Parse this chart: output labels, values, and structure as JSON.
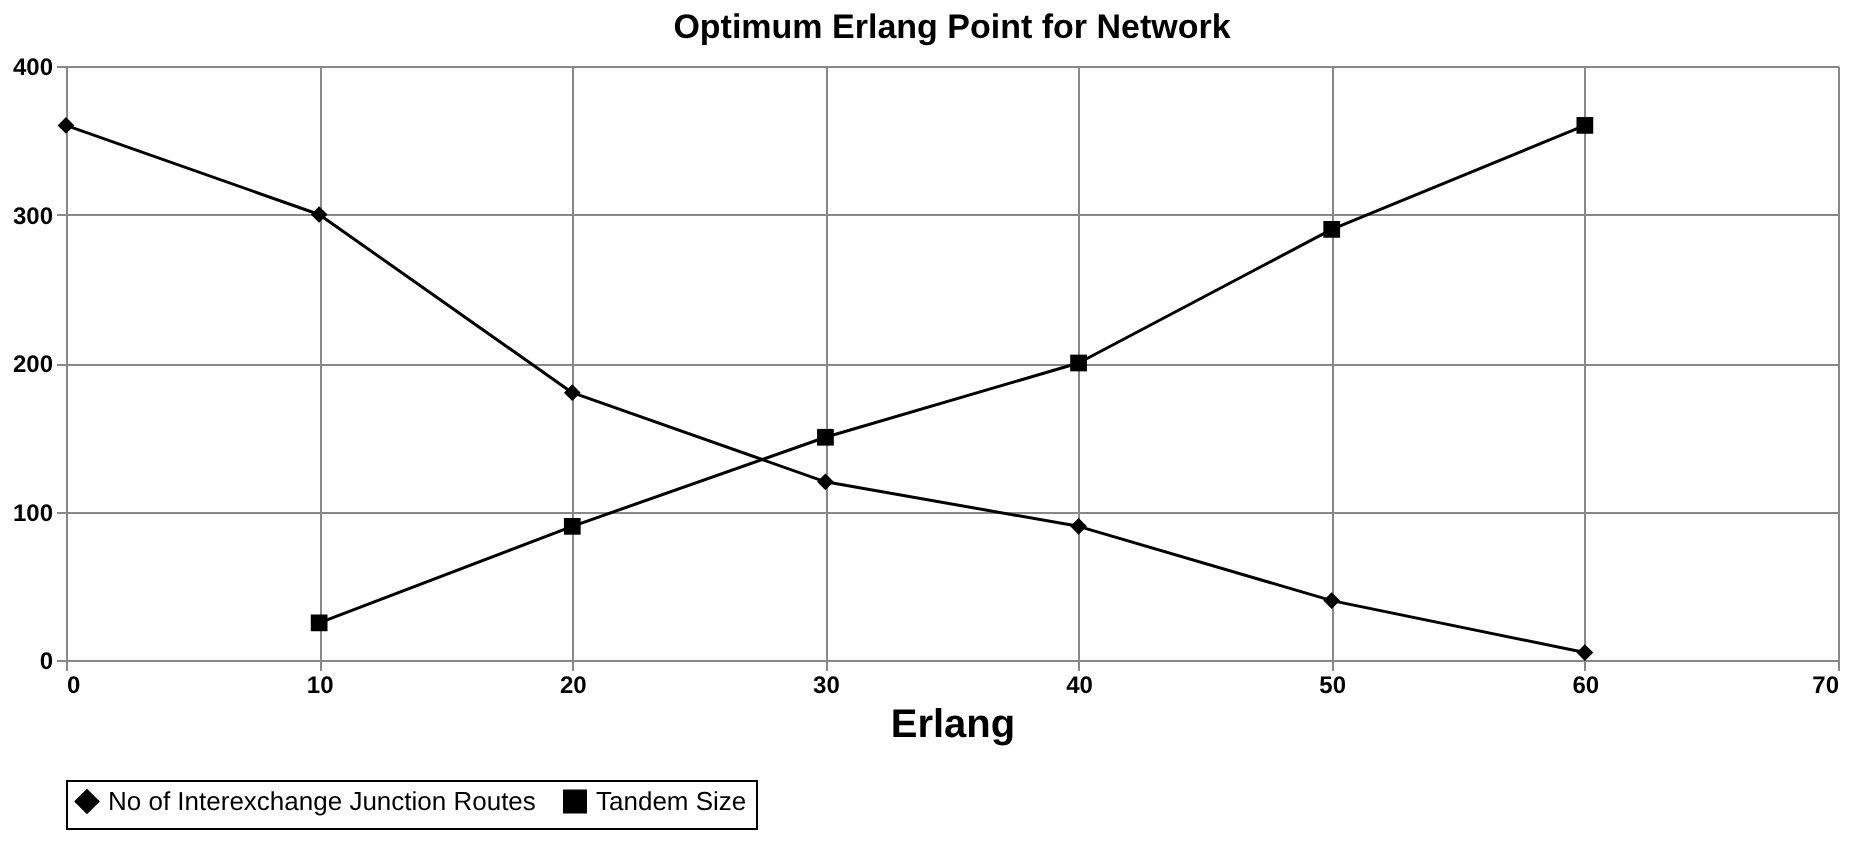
{
  "chart_data": {
    "type": "line",
    "title": "Optimum Erlang Point for Network",
    "xlabel": "Erlang",
    "xlim": [
      0,
      70
    ],
    "xticks": [
      0,
      10,
      20,
      30,
      40,
      50,
      60,
      70
    ],
    "ylim": [
      0,
      400
    ],
    "yticks": [
      0,
      100,
      200,
      300,
      400
    ],
    "grid": true,
    "legend": "bottom",
    "line_style": "solid",
    "series": [
      {
        "name": "No of Interexchange Junction Routes",
        "color": "#000000",
        "marker": "diamond",
        "x": [
          0,
          10,
          20,
          30,
          40,
          50,
          60
        ],
        "values": [
          360,
          300,
          180,
          120,
          90,
          40,
          5
        ]
      },
      {
        "name": "Tandem Size",
        "color": "#000000",
        "marker": "square",
        "x": [
          10,
          20,
          30,
          40,
          50,
          60
        ],
        "values": [
          25,
          90,
          150,
          200,
          290,
          360
        ]
      }
    ]
  }
}
